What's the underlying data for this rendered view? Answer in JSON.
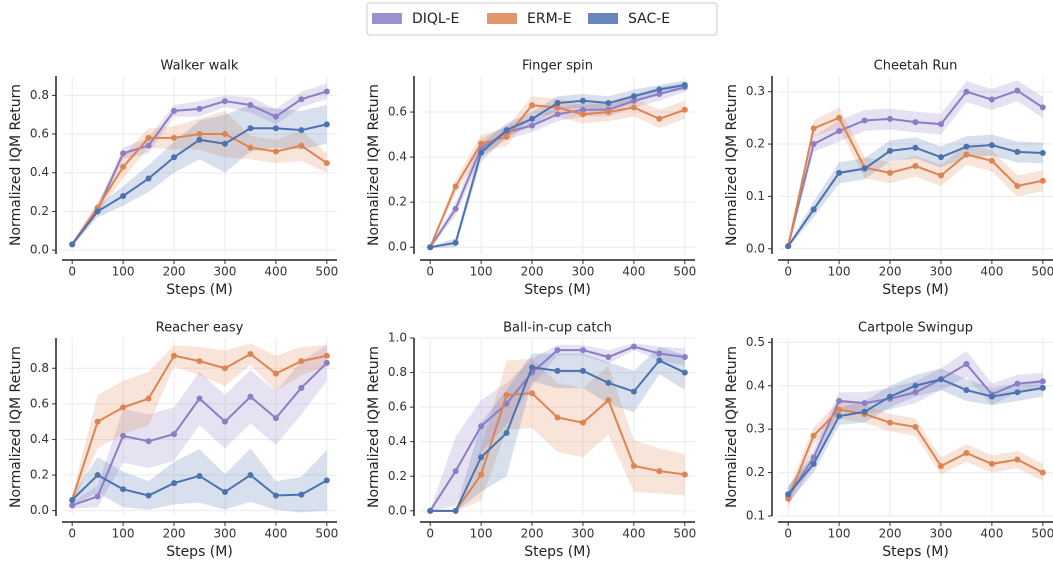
{
  "legend_chart": 0,
  "chart_data": [
    {
      "type": "line",
      "title": "Walker walk",
      "xlabel": "Steps (M)",
      "ylabel": "Normalized IQM Return",
      "x": [
        0,
        50,
        100,
        150,
        200,
        250,
        300,
        350,
        400,
        450,
        500
      ],
      "xlim": [
        -20,
        520
      ],
      "xticks": [
        0,
        100,
        200,
        300,
        400,
        500
      ],
      "ylim": [
        -0.02,
        0.9
      ],
      "yticks": [
        {
          "value": 0,
          "label": "0.0"
        },
        0.2,
        0.4,
        0.6,
        0.8
      ],
      "grid": true,
      "series": [
        {
          "name": "DIQL-E",
          "color": "#8c7dc4",
          "values": [
            0.03,
            0.21,
            0.5,
            0.54,
            0.72,
            0.73,
            0.77,
            0.75,
            0.69,
            0.78,
            0.82
          ],
          "error": [
            0.01,
            0.02,
            0.03,
            0.04,
            0.03,
            0.04,
            0.03,
            0.04,
            0.04,
            0.04,
            0.04
          ]
        },
        {
          "name": "ERM-E",
          "color": "#dd8452",
          "values": [
            0.03,
            0.22,
            0.43,
            0.58,
            0.58,
            0.6,
            0.6,
            0.53,
            0.51,
            0.54,
            0.45
          ],
          "error": [
            0.01,
            0.03,
            0.06,
            0.05,
            0.06,
            0.08,
            0.12,
            0.06,
            0.06,
            0.08,
            0.05
          ]
        },
        {
          "name": "SAC-E",
          "color": "#4c72b0",
          "values": [
            0.03,
            0.2,
            0.28,
            0.37,
            0.48,
            0.57,
            0.55,
            0.63,
            0.63,
            0.62,
            0.65
          ],
          "error": [
            0.01,
            0.03,
            0.05,
            0.07,
            0.08,
            0.1,
            0.15,
            0.12,
            0.1,
            0.1,
            0.1
          ]
        }
      ]
    },
    {
      "type": "line",
      "title": "Finger spin",
      "xlabel": "Steps (M)",
      "ylabel": "Normalized IQM Return",
      "x": [
        0,
        50,
        100,
        150,
        200,
        250,
        300,
        350,
        400,
        450,
        500
      ],
      "xlim": [
        -20,
        520
      ],
      "xticks": [
        0,
        100,
        200,
        300,
        400,
        500
      ],
      "ylim": [
        -0.03,
        0.76
      ],
      "yticks": [
        {
          "value": 0,
          "label": "0.0"
        },
        0.2,
        0.4,
        0.6
      ],
      "grid": true,
      "series": [
        {
          "name": "DIQL-E",
          "color": "#8c7dc4",
          "values": [
            0,
            0.17,
            0.44,
            0.51,
            0.54,
            0.59,
            0.61,
            0.61,
            0.65,
            0.68,
            0.71
          ],
          "error": [
            0.005,
            0.03,
            0.04,
            0.03,
            0.03,
            0.03,
            0.03,
            0.03,
            0.03,
            0.03,
            0.02
          ]
        },
        {
          "name": "ERM-E",
          "color": "#dd8452",
          "values": [
            0,
            0.27,
            0.46,
            0.49,
            0.63,
            0.62,
            0.59,
            0.6,
            0.62,
            0.57,
            0.61
          ],
          "error": [
            0.005,
            0.03,
            0.04,
            0.04,
            0.04,
            0.04,
            0.04,
            0.04,
            0.04,
            0.04,
            0.04
          ]
        },
        {
          "name": "SAC-E",
          "color": "#4c72b0",
          "values": [
            0,
            0.02,
            0.42,
            0.52,
            0.57,
            0.64,
            0.65,
            0.64,
            0.67,
            0.7,
            0.72
          ],
          "error": [
            0.005,
            0.02,
            0.04,
            0.03,
            0.03,
            0.03,
            0.03,
            0.03,
            0.03,
            0.02,
            0.02
          ]
        }
      ]
    },
    {
      "type": "line",
      "title": "Cheetah Run",
      "xlabel": "Steps (M)",
      "ylabel": "Normalized IQM Return",
      "x": [
        0,
        50,
        100,
        150,
        200,
        250,
        300,
        350,
        400,
        450,
        500
      ],
      "xlim": [
        -20,
        520
      ],
      "xticks": [
        0,
        100,
        200,
        300,
        400,
        500
      ],
      "ylim": [
        -0.01,
        0.33
      ],
      "yticks": [
        {
          "value": 0,
          "label": "0.0"
        },
        0.1,
        0.2,
        0.3
      ],
      "grid": true,
      "series": [
        {
          "name": "DIQL-E",
          "color": "#8c7dc4",
          "values": [
            0.005,
            0.2,
            0.225,
            0.245,
            0.248,
            0.242,
            0.238,
            0.3,
            0.285,
            0.302,
            0.27
          ],
          "error": [
            0.003,
            0.015,
            0.02,
            0.02,
            0.02,
            0.02,
            0.02,
            0.02,
            0.02,
            0.02,
            0.02
          ]
        },
        {
          "name": "ERM-E",
          "color": "#dd8452",
          "values": [
            0.005,
            0.23,
            0.25,
            0.155,
            0.145,
            0.158,
            0.14,
            0.18,
            0.168,
            0.12,
            0.13
          ],
          "error": [
            0.003,
            0.015,
            0.02,
            0.02,
            0.02,
            0.02,
            0.02,
            0.02,
            0.02,
            0.02,
            0.02
          ]
        },
        {
          "name": "SAC-E",
          "color": "#4c72b0",
          "values": [
            0.005,
            0.075,
            0.145,
            0.153,
            0.187,
            0.193,
            0.175,
            0.195,
            0.198,
            0.185,
            0.183
          ],
          "error": [
            0.003,
            0.015,
            0.02,
            0.02,
            0.02,
            0.02,
            0.02,
            0.02,
            0.02,
            0.02,
            0.02
          ]
        }
      ]
    },
    {
      "type": "line",
      "title": "Reacher easy",
      "xlabel": "Steps (M)",
      "ylabel": "Normalized IQM Return",
      "x": [
        0,
        50,
        100,
        150,
        200,
        250,
        300,
        350,
        400,
        450,
        500
      ],
      "xlim": [
        -20,
        520
      ],
      "xticks": [
        0,
        100,
        200,
        300,
        400,
        500
      ],
      "ylim": [
        -0.03,
        0.97
      ],
      "yticks": [
        {
          "value": 0,
          "label": "0.0"
        },
        0.2,
        0.4,
        0.6,
        0.8
      ],
      "grid": true,
      "series": [
        {
          "name": "DIQL-E",
          "color": "#8c7dc4",
          "values": [
            0.03,
            0.08,
            0.42,
            0.39,
            0.43,
            0.63,
            0.5,
            0.64,
            0.52,
            0.69,
            0.83
          ],
          "error": [
            0.02,
            0.06,
            0.15,
            0.15,
            0.15,
            0.15,
            0.15,
            0.15,
            0.15,
            0.15,
            0.1
          ]
        },
        {
          "name": "ERM-E",
          "color": "#dd8452",
          "values": [
            0.06,
            0.5,
            0.58,
            0.63,
            0.87,
            0.84,
            0.8,
            0.88,
            0.77,
            0.84,
            0.87
          ],
          "error": [
            0.03,
            0.15,
            0.15,
            0.15,
            0.06,
            0.08,
            0.1,
            0.06,
            0.1,
            0.08,
            0.06
          ]
        },
        {
          "name": "SAC-E",
          "color": "#4c72b0",
          "values": [
            0.06,
            0.2,
            0.12,
            0.085,
            0.155,
            0.195,
            0.105,
            0.2,
            0.085,
            0.09,
            0.17
          ],
          "error": [
            0.03,
            0.1,
            0.1,
            0.08,
            0.12,
            0.15,
            0.1,
            0.15,
            0.08,
            0.1,
            0.17
          ]
        }
      ]
    },
    {
      "type": "line",
      "title": "Ball-in-cup catch",
      "xlabel": "Steps (M)",
      "ylabel": "Normalized IQM Return",
      "x": [
        0,
        50,
        100,
        150,
        200,
        250,
        300,
        350,
        400,
        450,
        500
      ],
      "xlim": [
        -20,
        520
      ],
      "xticks": [
        0,
        100,
        200,
        300,
        400,
        500
      ],
      "ylim": [
        -0.03,
        1.0
      ],
      "yticks": [
        {
          "value": 0,
          "label": "0.0"
        },
        0.2,
        0.4,
        0.6,
        0.8,
        {
          "value": 1,
          "label": "1.0"
        }
      ],
      "grid": true,
      "series": [
        {
          "name": "DIQL-E",
          "color": "#8c7dc4",
          "values": [
            0,
            0.23,
            0.49,
            0.62,
            0.8,
            0.93,
            0.93,
            0.89,
            0.95,
            0.91,
            0.89
          ],
          "error": [
            0.005,
            0.2,
            0.15,
            0.12,
            0.08,
            0.03,
            0.03,
            0.04,
            0.02,
            0.04,
            0.05
          ]
        },
        {
          "name": "ERM-E",
          "color": "#dd8452",
          "values": [
            0,
            0,
            0.21,
            0.67,
            0.68,
            0.54,
            0.51,
            0.64,
            0.26,
            0.23,
            0.21
          ],
          "error": [
            0.005,
            0.005,
            0.15,
            0.2,
            0.2,
            0.2,
            0.2,
            0.2,
            0.15,
            0.13,
            0.12
          ]
        },
        {
          "name": "SAC-E",
          "color": "#4c72b0",
          "values": [
            0,
            0,
            0.31,
            0.45,
            0.83,
            0.81,
            0.81,
            0.74,
            0.69,
            0.87,
            0.8
          ],
          "error": [
            0.005,
            0.005,
            0.2,
            0.25,
            0.08,
            0.1,
            0.1,
            0.12,
            0.12,
            0.08,
            0.1
          ]
        }
      ]
    },
    {
      "type": "line",
      "title": "Cartpole Swingup",
      "xlabel": "Steps (M)",
      "ylabel": "Normalized IQM Return",
      "x": [
        0,
        50,
        100,
        150,
        200,
        250,
        300,
        350,
        400,
        450,
        500
      ],
      "xlim": [
        -20,
        520
      ],
      "xticks": [
        0,
        100,
        200,
        300,
        400,
        500
      ],
      "ylim": [
        0.1,
        0.51
      ],
      "yticks": [
        0.1,
        0.2,
        0.3,
        0.4,
        0.5
      ],
      "grid": true,
      "series": [
        {
          "name": "DIQL-E",
          "color": "#8c7dc4",
          "values": [
            0.145,
            0.235,
            0.365,
            0.36,
            0.37,
            0.385,
            0.415,
            0.45,
            0.38,
            0.405,
            0.41
          ],
          "error": [
            0.02,
            0.02,
            0.02,
            0.025,
            0.025,
            0.025,
            0.025,
            0.03,
            0.025,
            0.02,
            0.02
          ]
        },
        {
          "name": "ERM-E",
          "color": "#dd8452",
          "values": [
            0.14,
            0.285,
            0.345,
            0.335,
            0.315,
            0.305,
            0.215,
            0.245,
            0.22,
            0.23,
            0.2
          ],
          "error": [
            0.02,
            0.02,
            0.02,
            0.02,
            0.02,
            0.02,
            0.02,
            0.02,
            0.02,
            0.02,
            0.02
          ]
        },
        {
          "name": "SAC-E",
          "color": "#4c72b0",
          "values": [
            0.15,
            0.22,
            0.33,
            0.34,
            0.375,
            0.4,
            0.415,
            0.39,
            0.375,
            0.385,
            0.395
          ],
          "error": [
            0.02,
            0.02,
            0.02,
            0.025,
            0.025,
            0.025,
            0.025,
            0.025,
            0.02,
            0.02,
            0.02
          ]
        }
      ]
    }
  ]
}
